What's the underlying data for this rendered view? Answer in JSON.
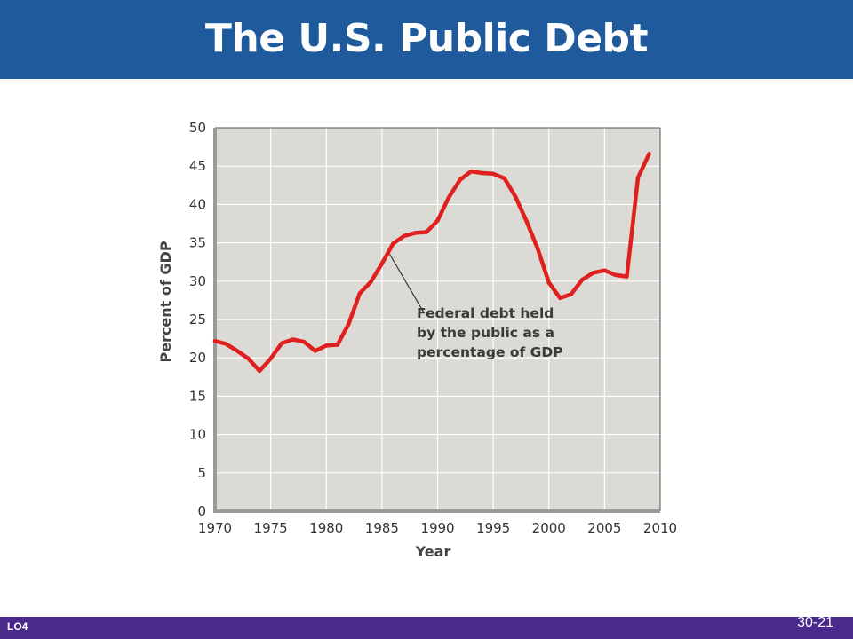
{
  "slide": {
    "title": "The U.S. Public Debt",
    "footer_lo": "LO4",
    "page_number": "30-21",
    "colors": {
      "title_bar": "#1f5b9c",
      "footer_bar": "#4a2a8a",
      "plot_bg": "#dcdad4",
      "line": "#e0201e"
    }
  },
  "chart_data": {
    "type": "line",
    "title": "",
    "xlabel": "Year",
    "ylabel": "Percent of GDP",
    "xlim": [
      1970,
      2010
    ],
    "ylim": [
      0,
      50
    ],
    "x_ticks": [
      "1970",
      "1975",
      "1980",
      "1985",
      "1990",
      "1995",
      "2000",
      "2005",
      "2010"
    ],
    "y_ticks": [
      "0",
      "5",
      "10",
      "15",
      "20",
      "25",
      "30",
      "35",
      "40",
      "45",
      "50"
    ],
    "grid": true,
    "annotation": {
      "lines": [
        "Federal debt held",
        "by the public as a",
        "percentage of GDP"
      ],
      "points_to": {
        "x": 1985.5,
        "y": 34
      }
    },
    "series": [
      {
        "x": [
          1970,
          1971,
          1972,
          1973,
          1974,
          1975,
          1976,
          1977,
          1978,
          1979,
          1980,
          1981,
          1982,
          1983,
          1984,
          1985,
          1986,
          1987,
          1988,
          1989,
          1990,
          1991,
          1992,
          1993,
          1994,
          1995,
          1996,
          1997,
          1998,
          1999,
          2000,
          2001,
          2002,
          2003,
          2004,
          2005,
          2006,
          2007,
          2008,
          2009
        ],
        "y": [
          22.2,
          21.8,
          20.9,
          19.9,
          18.3,
          19.9,
          21.9,
          22.4,
          22.1,
          20.9,
          21.6,
          21.7,
          24.4,
          28.4,
          29.9,
          32.3,
          34.9,
          35.9,
          36.3,
          36.4,
          37.9,
          40.9,
          43.2,
          44.3,
          44.1,
          44.0,
          43.4,
          41.0,
          37.8,
          34.2,
          29.8,
          27.8,
          28.3,
          30.2,
          31.1,
          31.4,
          30.8,
          30.6,
          43.5,
          46.6
        ]
      }
    ]
  }
}
